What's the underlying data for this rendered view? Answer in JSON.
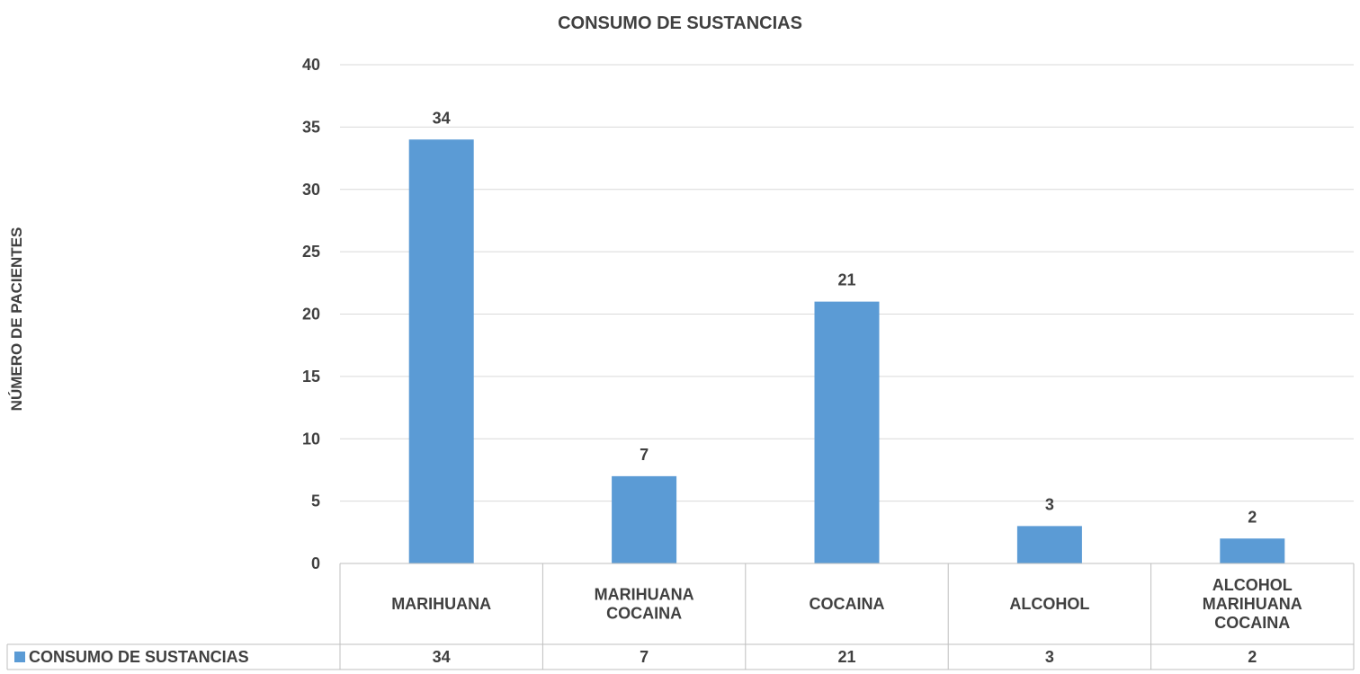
{
  "chart_data": {
    "type": "bar",
    "title": "CONSUMO DE SUSTANCIAS",
    "ylabel": "NÚMERO  DE  PACIENTES",
    "xlabel": "",
    "categories": [
      [
        "MARIHUANA"
      ],
      [
        "MARIHUANA",
        "COCAINA"
      ],
      [
        "COCAINA"
      ],
      [
        "ALCOHOL"
      ],
      [
        "ALCOHOL",
        "MARIHUANA",
        "COCAINA"
      ]
    ],
    "series": [
      {
        "name": "CONSUMO DE SUSTANCIAS",
        "values": [
          34,
          7,
          21,
          3,
          2
        ],
        "color": "#5B9BD5"
      }
    ],
    "ylim": [
      0,
      40
    ],
    "yticks": [
      0,
      5,
      10,
      15,
      20,
      25,
      30,
      35,
      40
    ],
    "grid": true,
    "data_labels": true,
    "legend": "data-table-left",
    "data_table": true
  }
}
